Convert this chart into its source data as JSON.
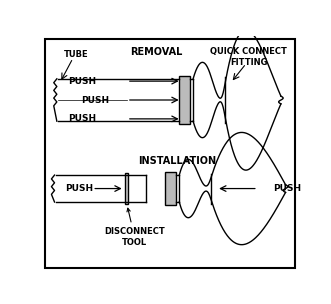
{
  "bg_color": "#ffffff",
  "line_color": "#000000",
  "text_color": "#000000",
  "hatch_color": "#aaaaaa",
  "labels": {
    "tube": "TUBE",
    "removal": "REMOVAL",
    "quick_connect": "QUICK CONNECT\nFITTING",
    "installation": "INSTALLATION",
    "disconnect_tool": "DISCONNECT\nTOOL",
    "push": "PUSH"
  },
  "fig_width": 3.31,
  "fig_height": 3.04,
  "dpi": 100
}
